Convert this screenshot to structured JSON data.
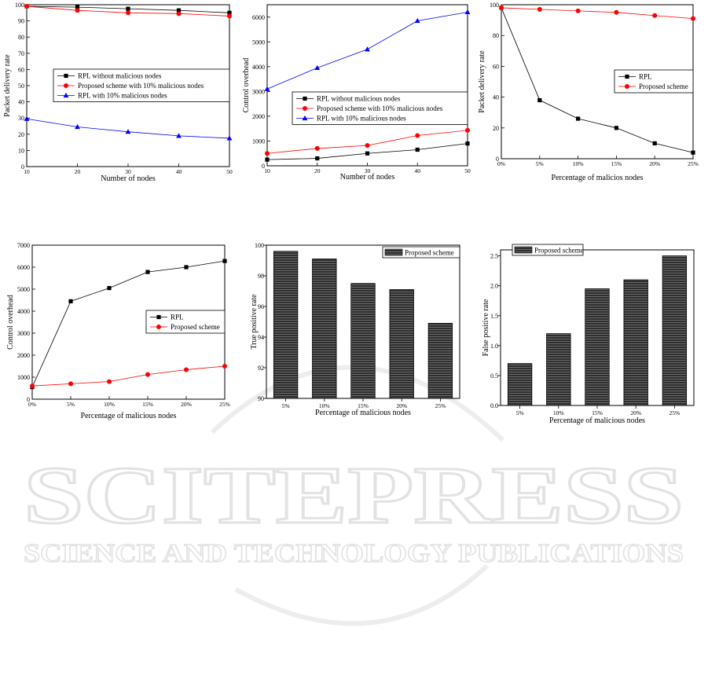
{
  "watermark": {
    "line1": "SCITEPRESS",
    "line2": "SCIENCE AND TECHNOLOGY PUBLICATIONS",
    "color": "#ececec"
  },
  "chart_data": [
    {
      "id": "c1",
      "type": "line",
      "xlabel": "Number of nodes",
      "ylabel": "Packet delivery rate",
      "x": [
        10,
        20,
        30,
        40,
        50
      ],
      "x_ticks": [
        "10",
        "20",
        "30",
        "40",
        "50"
      ],
      "ylim": [
        0,
        100
      ],
      "y_ticks": [
        0,
        10,
        20,
        30,
        40,
        50,
        60,
        70,
        80,
        90,
        100
      ],
      "grid": false,
      "legend": "center-right",
      "series": [
        {
          "name": "RPL without malicious nodes",
          "marker": "square",
          "color": "#000000",
          "values": [
            99,
            98.5,
            97.5,
            96.5,
            95
          ]
        },
        {
          "name": "Proposed scheme with 10% malicious nodes",
          "marker": "circle",
          "color": "#ff0000",
          "values": [
            99,
            96.5,
            95,
            94.5,
            93
          ]
        },
        {
          "name": "RPL with 10% malicious nodes",
          "marker": "triangle",
          "color": "#0000ff",
          "values": [
            29.5,
            24.5,
            21.5,
            19,
            17.5
          ]
        }
      ]
    },
    {
      "id": "c2",
      "type": "line",
      "xlabel": "Number of nodes",
      "ylabel": "Control overhead",
      "x": [
        10,
        20,
        30,
        40,
        50
      ],
      "x_ticks": [
        "10",
        "20",
        "30",
        "40",
        "50"
      ],
      "ylim": [
        0,
        6500
      ],
      "y_ticks": [
        0,
        1000,
        2000,
        3000,
        4000,
        5000,
        6000
      ],
      "grid": false,
      "legend": "center-right",
      "series": [
        {
          "name": "RPL without malicious nodes",
          "marker": "square",
          "color": "#000000",
          "values": [
            250,
            300,
            500,
            650,
            900
          ]
        },
        {
          "name": "Proposed scheme with 10% malicious nodes",
          "marker": "circle",
          "color": "#ff0000",
          "values": [
            500,
            700,
            820,
            1220,
            1430
          ]
        },
        {
          "name": "RPL with 10% malicious nodes",
          "marker": "triangle",
          "color": "#0000ff",
          "values": [
            3100,
            3950,
            4700,
            5850,
            6200
          ]
        }
      ]
    },
    {
      "id": "c3",
      "type": "line",
      "xlabel": "Percentage of malicios nodes",
      "ylabel": "Packet delivery rate",
      "x": [
        0,
        5,
        10,
        15,
        20,
        25
      ],
      "x_ticks": [
        "0%",
        "5%",
        "10%",
        "15%",
        "20%",
        "25%"
      ],
      "ylim": [
        0,
        100
      ],
      "y_ticks": [
        0,
        20,
        40,
        60,
        80,
        100
      ],
      "grid": false,
      "legend": "top-right",
      "series": [
        {
          "name": "RPL",
          "marker": "square",
          "color": "#000000",
          "values": [
            98,
            38,
            26,
            20,
            10,
            4
          ]
        },
        {
          "name": "Proposed scheme",
          "marker": "circle",
          "color": "#ff0000",
          "values": [
            98,
            97,
            96,
            95,
            93,
            91
          ]
        }
      ]
    },
    {
      "id": "c4",
      "type": "line",
      "xlabel": "Percentage of malicious nodes",
      "ylabel": "Control overhead",
      "x": [
        0,
        5,
        10,
        15,
        20,
        25
      ],
      "x_ticks": [
        "0%",
        "5%",
        "10%",
        "15%",
        "20%",
        "25%"
      ],
      "ylim": [
        0,
        7000
      ],
      "y_ticks": [
        0,
        1000,
        2000,
        3000,
        4000,
        5000,
        6000,
        7000
      ],
      "grid": false,
      "legend": "center-right",
      "series": [
        {
          "name": "RPL",
          "marker": "square",
          "color": "#000000",
          "values": [
            550,
            4450,
            5050,
            5780,
            6000,
            6280
          ]
        },
        {
          "name": "Proposed scheme",
          "marker": "circle",
          "color": "#ff0000",
          "values": [
            600,
            700,
            800,
            1120,
            1340,
            1500
          ]
        }
      ]
    },
    {
      "id": "c5",
      "type": "bar",
      "xlabel": "Percentage of malicious nodes",
      "ylabel": "True positive rate",
      "categories": [
        "5%",
        "10%",
        "15%",
        "20%",
        "25%"
      ],
      "ylim": [
        90,
        100
      ],
      "y_ticks": [
        90,
        92,
        94,
        96,
        98,
        100
      ],
      "grid": false,
      "legend": "top-right",
      "series": [
        {
          "name": "Proposed scheme",
          "color": "#3a3a3a",
          "values": [
            99.6,
            99.1,
            97.5,
            97.1,
            94.9
          ]
        }
      ]
    },
    {
      "id": "c6",
      "type": "bar",
      "xlabel": "Percentage of malicious nodes",
      "ylabel": "False positive rate",
      "categories": [
        "5%",
        "10%",
        "15%",
        "20%",
        "25%"
      ],
      "ylim": [
        0,
        2.6
      ],
      "y_ticks": [
        "0.0",
        "0.5",
        "1.0",
        "1.5",
        "2.0",
        "2.5"
      ],
      "grid": false,
      "legend": "top-left",
      "series": [
        {
          "name": "Proposed scheme",
          "color": "#3a3a3a",
          "values": [
            0.7,
            1.2,
            1.95,
            2.1,
            2.5
          ]
        }
      ]
    }
  ]
}
